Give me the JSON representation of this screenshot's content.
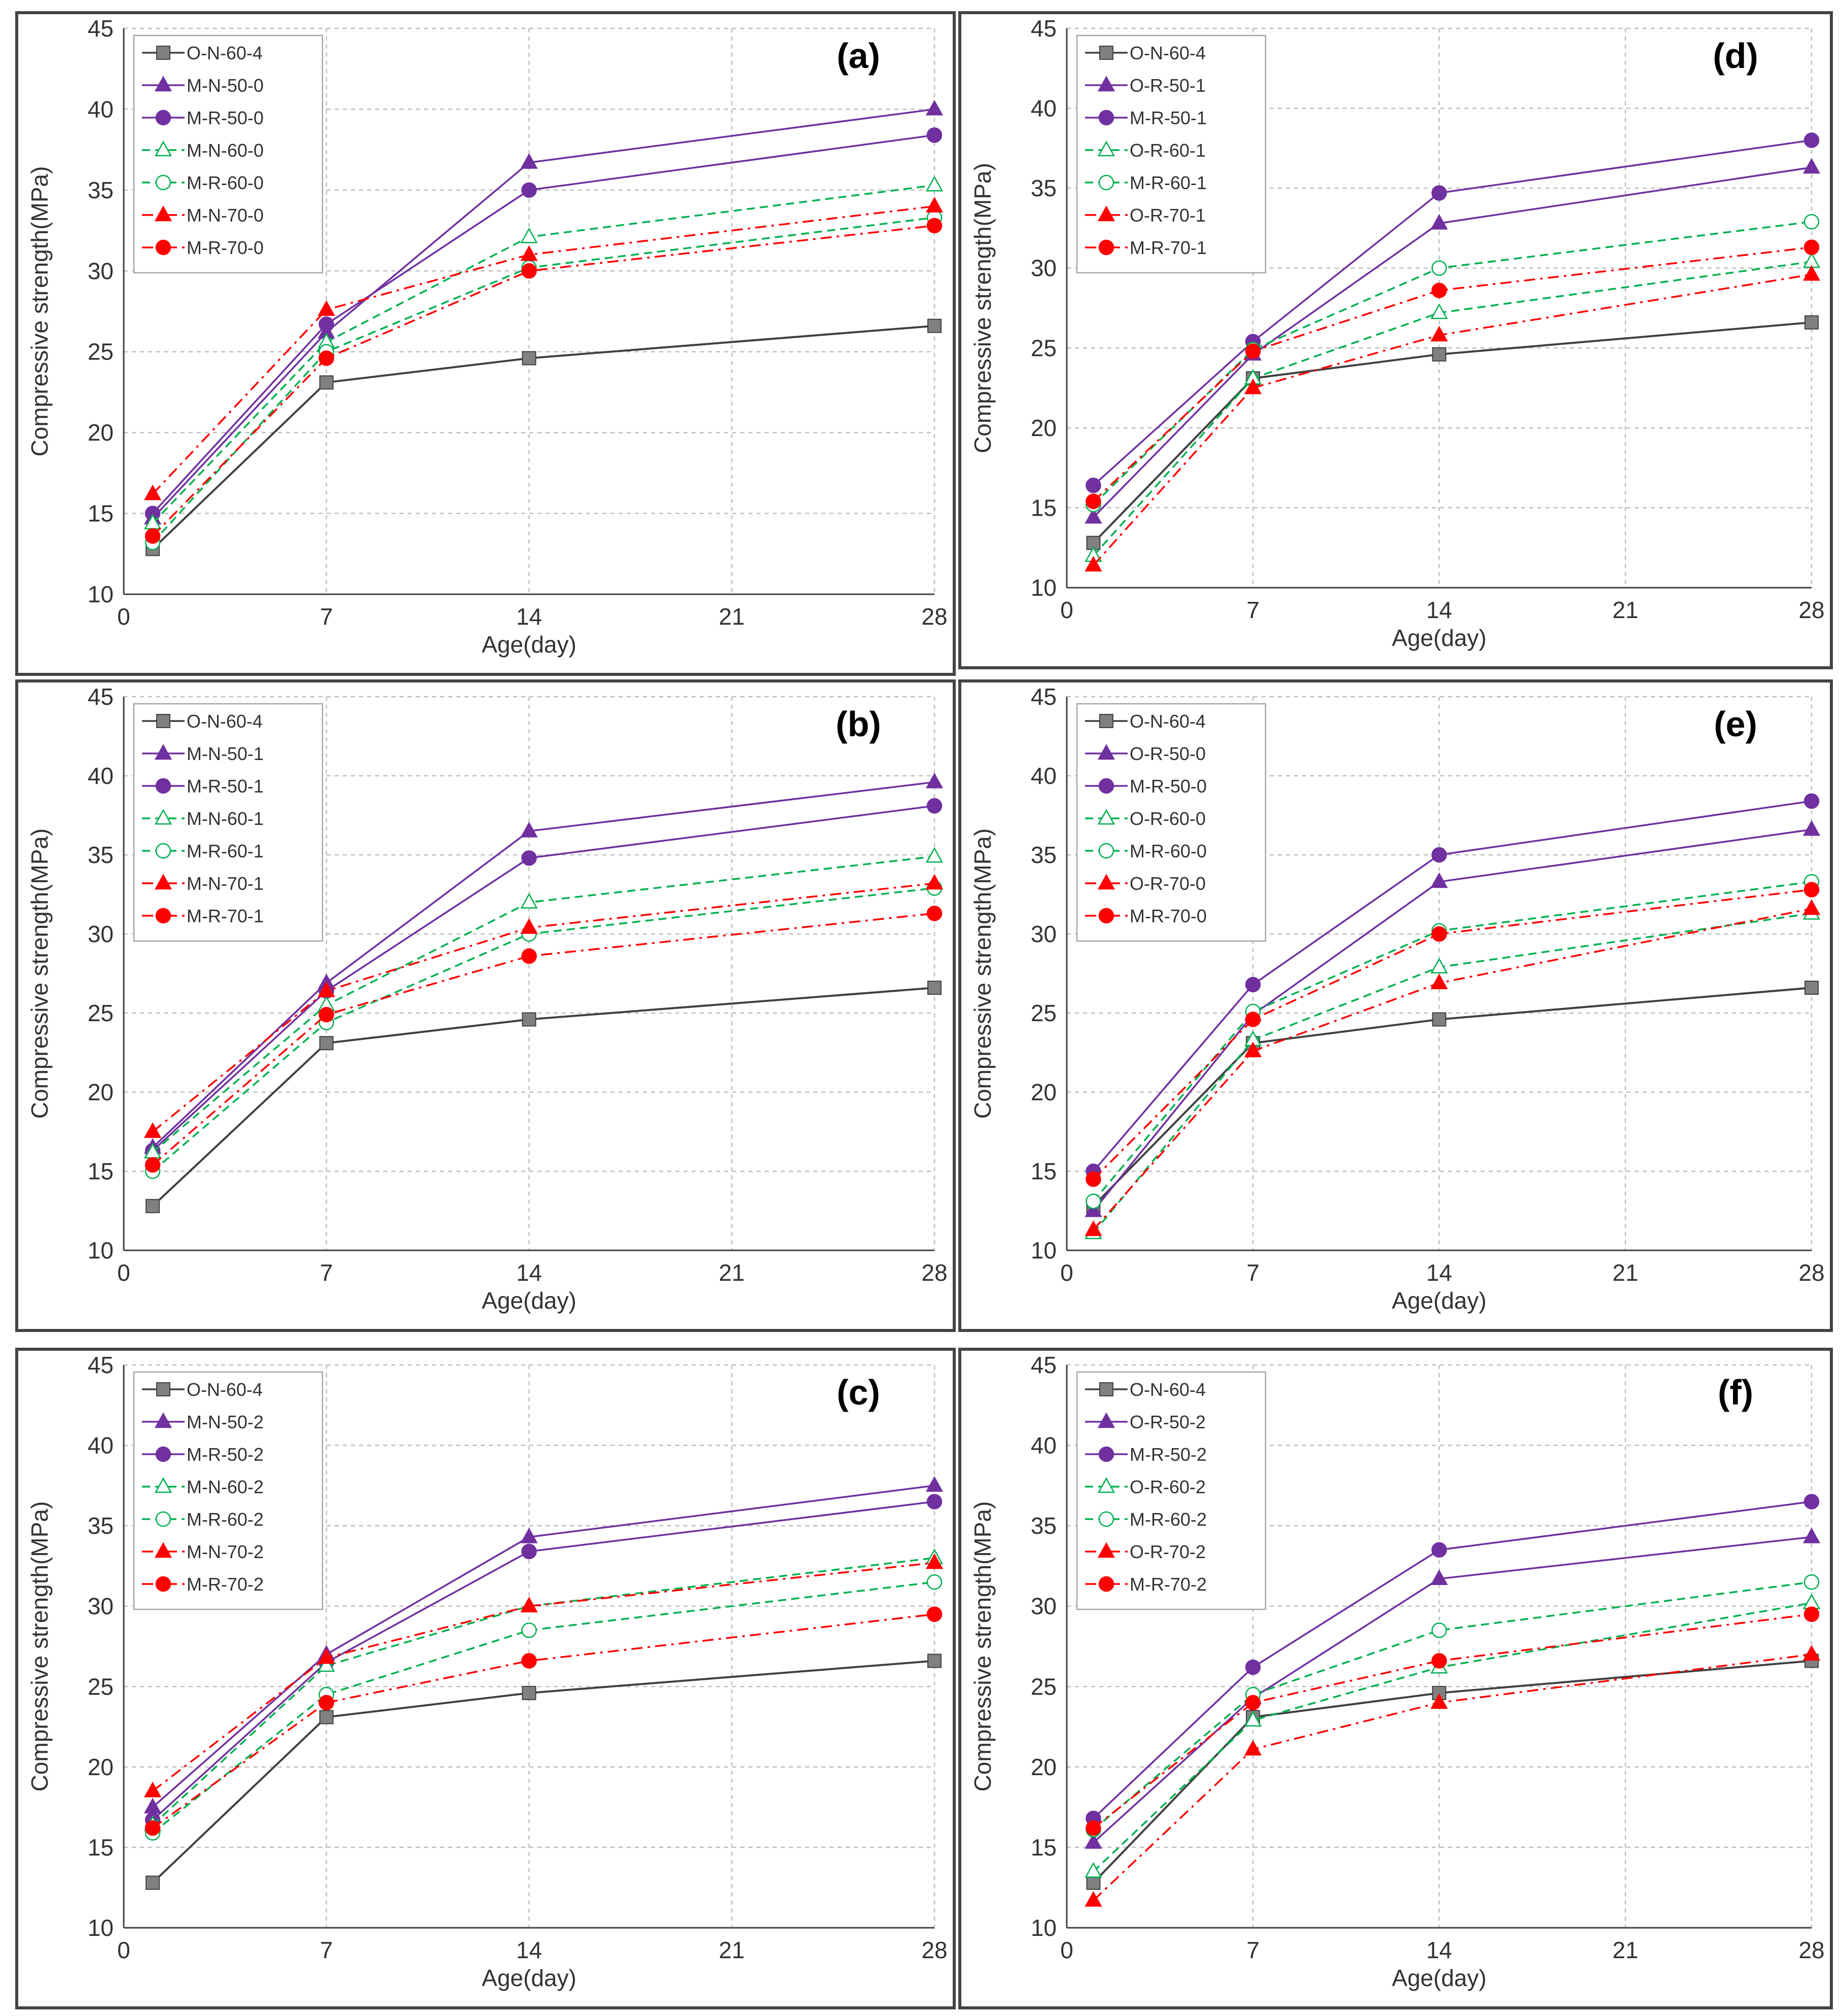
{
  "colors": {
    "black_series": "#404040",
    "black_marker": "#808080",
    "purple": "#7030A0",
    "green": "#00B050",
    "red": "#FF0000",
    "grid": "#BFBFBF",
    "axis": "#404040"
  },
  "chart_data": [
    {
      "type": "line",
      "panel": "(a)",
      "xlabel": "Age(day)",
      "ylabel": "Compressive strength(MPa)",
      "xlim": [
        0,
        28
      ],
      "ylim": [
        10,
        45
      ],
      "xticks": [
        0,
        7,
        14,
        21,
        28
      ],
      "yticks": [
        10,
        15,
        20,
        25,
        30,
        35,
        40,
        45
      ],
      "grid": true,
      "legend": "top-left",
      "x": [
        1,
        7,
        14,
        28
      ],
      "series": [
        {
          "name": "O-N-60-4",
          "marker": "square",
          "color": "black",
          "line": "solid",
          "values": [
            12.8,
            23.1,
            24.6,
            26.6
          ]
        },
        {
          "name": "M-N-50-0",
          "marker": "triangle",
          "color": "purple",
          "line": "solid",
          "fill": true,
          "values": [
            14.7,
            26.2,
            36.7,
            40.0
          ]
        },
        {
          "name": "M-R-50-0",
          "marker": "circle",
          "color": "purple",
          "line": "solid",
          "fill": true,
          "values": [
            15.0,
            26.7,
            35.0,
            38.4
          ]
        },
        {
          "name": "M-N-60-0",
          "marker": "triangle",
          "color": "green",
          "line": "dash",
          "fill": false,
          "values": [
            14.4,
            25.6,
            32.1,
            35.3
          ]
        },
        {
          "name": "M-R-60-0",
          "marker": "circle",
          "color": "green",
          "line": "dash",
          "fill": false,
          "values": [
            13.2,
            25.0,
            30.2,
            33.3
          ]
        },
        {
          "name": "M-N-70-0",
          "marker": "triangle",
          "color": "red",
          "line": "dashdot",
          "fill": true,
          "values": [
            16.2,
            27.6,
            31.0,
            34.0
          ]
        },
        {
          "name": "M-R-70-0",
          "marker": "circle",
          "color": "red",
          "line": "dashdot",
          "fill": true,
          "values": [
            13.6,
            24.6,
            30.0,
            32.8
          ]
        }
      ]
    },
    {
      "type": "line",
      "panel": "(b)",
      "xlabel": "Age(day)",
      "ylabel": "Compressive strength(MPa)",
      "xlim": [
        0,
        28
      ],
      "ylim": [
        10,
        45
      ],
      "xticks": [
        0,
        7,
        14,
        21,
        28
      ],
      "yticks": [
        10,
        15,
        20,
        25,
        30,
        35,
        40,
        45
      ],
      "grid": true,
      "legend": "top-left",
      "x": [
        1,
        7,
        14,
        28
      ],
      "series": [
        {
          "name": "O-N-60-4",
          "marker": "square",
          "color": "black",
          "line": "solid",
          "values": [
            12.8,
            23.1,
            24.6,
            26.6
          ]
        },
        {
          "name": "M-N-50-1",
          "marker": "triangle",
          "color": "purple",
          "line": "solid",
          "fill": true,
          "values": [
            16.5,
            26.9,
            36.5,
            39.6
          ]
        },
        {
          "name": "M-R-50-1",
          "marker": "circle",
          "color": "purple",
          "line": "solid",
          "fill": true,
          "values": [
            16.3,
            26.4,
            34.8,
            38.1
          ]
        },
        {
          "name": "M-N-60-1",
          "marker": "triangle",
          "color": "green",
          "line": "dash",
          "fill": false,
          "values": [
            16.2,
            25.5,
            32.0,
            34.9
          ]
        },
        {
          "name": "M-R-60-1",
          "marker": "circle",
          "color": "green",
          "line": "dash",
          "fill": false,
          "values": [
            15.0,
            24.4,
            30.0,
            32.9
          ]
        },
        {
          "name": "M-N-70-1",
          "marker": "triangle",
          "color": "red",
          "line": "dashdot",
          "fill": true,
          "values": [
            17.5,
            26.4,
            30.4,
            33.2
          ]
        },
        {
          "name": "M-R-70-1",
          "marker": "circle",
          "color": "red",
          "line": "dashdot",
          "fill": true,
          "values": [
            15.4,
            24.9,
            28.6,
            31.3
          ]
        }
      ]
    },
    {
      "type": "line",
      "panel": "(c)",
      "xlabel": "Age(day)",
      "ylabel": "Compressive strength(MPa)",
      "xlim": [
        0,
        28
      ],
      "ylim": [
        10,
        45
      ],
      "xticks": [
        0,
        7,
        14,
        21,
        28
      ],
      "yticks": [
        10,
        15,
        20,
        25,
        30,
        35,
        40,
        45
      ],
      "grid": true,
      "legend": "top-left",
      "x": [
        1,
        7,
        14,
        28
      ],
      "series": [
        {
          "name": "O-N-60-4",
          "marker": "square",
          "color": "black",
          "line": "solid",
          "values": [
            12.8,
            23.1,
            24.6,
            26.6
          ]
        },
        {
          "name": "M-N-50-2",
          "marker": "triangle",
          "color": "purple",
          "line": "solid",
          "fill": true,
          "values": [
            17.5,
            27.0,
            34.3,
            37.5
          ]
        },
        {
          "name": "M-R-50-2",
          "marker": "circle",
          "color": "purple",
          "line": "solid",
          "fill": true,
          "values": [
            16.7,
            26.5,
            33.4,
            36.5
          ]
        },
        {
          "name": "M-N-60-2",
          "marker": "triangle",
          "color": "green",
          "line": "dash",
          "fill": false,
          "values": [
            16.4,
            26.3,
            30.0,
            33.0
          ]
        },
        {
          "name": "M-R-60-2",
          "marker": "circle",
          "color": "green",
          "line": "dash",
          "fill": false,
          "values": [
            15.9,
            24.5,
            28.5,
            31.5
          ]
        },
        {
          "name": "M-N-70-2",
          "marker": "triangle",
          "color": "red",
          "line": "dashdot",
          "fill": true,
          "values": [
            18.5,
            26.8,
            30.0,
            32.7
          ]
        },
        {
          "name": "M-R-70-2",
          "marker": "circle",
          "color": "red",
          "line": "dashdot",
          "fill": true,
          "values": [
            16.2,
            24.0,
            26.6,
            29.5
          ]
        }
      ]
    },
    {
      "type": "line",
      "panel": "(d)",
      "xlabel": "Age(day)",
      "ylabel": "Compressive strength(MPa)",
      "xlim": [
        0,
        28
      ],
      "ylim": [
        10,
        45
      ],
      "xticks": [
        0,
        7,
        14,
        21,
        28
      ],
      "yticks": [
        10,
        15,
        20,
        25,
        30,
        35,
        40,
        45
      ],
      "grid": true,
      "legend": "top-left",
      "x": [
        1,
        7,
        14,
        28
      ],
      "series": [
        {
          "name": "O-N-60-4",
          "marker": "square",
          "color": "black",
          "line": "solid",
          "values": [
            12.8,
            23.1,
            24.6,
            26.6
          ]
        },
        {
          "name": "O-R-50-1",
          "marker": "triangle",
          "color": "purple",
          "line": "solid",
          "fill": true,
          "values": [
            14.4,
            24.6,
            32.8,
            36.3
          ]
        },
        {
          "name": "M-R-50-1",
          "marker": "circle",
          "color": "purple",
          "line": "solid",
          "fill": true,
          "values": [
            16.4,
            25.4,
            34.7,
            38.0
          ]
        },
        {
          "name": "O-R-60-1",
          "marker": "triangle",
          "color": "green",
          "line": "dash",
          "fill": false,
          "values": [
            12.0,
            23.1,
            27.2,
            30.4
          ]
        },
        {
          "name": "M-R-60-1",
          "marker": "circle",
          "color": "green",
          "line": "dash",
          "fill": false,
          "values": [
            15.2,
            24.9,
            30.0,
            32.9
          ]
        },
        {
          "name": "O-R-70-1",
          "marker": "triangle",
          "color": "red",
          "line": "dashdot",
          "fill": true,
          "values": [
            11.4,
            22.5,
            25.8,
            29.6
          ]
        },
        {
          "name": "M-R-70-1",
          "marker": "circle",
          "color": "red",
          "line": "dashdot",
          "fill": true,
          "values": [
            15.4,
            24.8,
            28.6,
            31.3
          ]
        }
      ]
    },
    {
      "type": "line",
      "panel": "(e)",
      "xlabel": "Age(day)",
      "ylabel": "Compressive strength(MPa)",
      "xlim": [
        0,
        28
      ],
      "ylim": [
        10,
        45
      ],
      "xticks": [
        0,
        7,
        14,
        21,
        28
      ],
      "yticks": [
        10,
        15,
        20,
        25,
        30,
        35,
        40,
        45
      ],
      "grid": true,
      "legend": "top-left",
      "x": [
        1,
        7,
        14,
        28
      ],
      "series": [
        {
          "name": "O-N-60-4",
          "marker": "square",
          "color": "black",
          "line": "solid",
          "values": [
            12.8,
            23.1,
            24.6,
            26.6
          ]
        },
        {
          "name": "O-R-50-0",
          "marker": "triangle",
          "color": "purple",
          "line": "solid",
          "fill": true,
          "values": [
            12.5,
            24.9,
            33.3,
            36.6
          ]
        },
        {
          "name": "M-R-50-0",
          "marker": "circle",
          "color": "purple",
          "line": "solid",
          "fill": true,
          "values": [
            15.0,
            26.8,
            35.0,
            38.4
          ]
        },
        {
          "name": "O-R-60-0",
          "marker": "triangle",
          "color": "green",
          "line": "dash",
          "fill": false,
          "values": [
            11.1,
            23.3,
            27.9,
            31.3
          ]
        },
        {
          "name": "M-R-60-0",
          "marker": "circle",
          "color": "green",
          "line": "dash",
          "fill": false,
          "values": [
            13.1,
            25.1,
            30.2,
            33.3
          ]
        },
        {
          "name": "O-R-70-0",
          "marker": "triangle",
          "color": "red",
          "line": "dashdot",
          "fill": true,
          "values": [
            11.3,
            22.6,
            26.9,
            31.6
          ]
        },
        {
          "name": "M-R-70-0",
          "marker": "circle",
          "color": "red",
          "line": "dashdot",
          "fill": true,
          "values": [
            14.5,
            24.6,
            30.0,
            32.8
          ]
        }
      ]
    },
    {
      "type": "line",
      "panel": "(f)",
      "xlabel": "Age(day)",
      "ylabel": "Compressive strength(MPa)",
      "xlim": [
        0,
        28
      ],
      "ylim": [
        10,
        45
      ],
      "xticks": [
        0,
        7,
        14,
        21,
        28
      ],
      "yticks": [
        10,
        15,
        20,
        25,
        30,
        35,
        40,
        45
      ],
      "grid": true,
      "legend": "top-left",
      "x": [
        1,
        7,
        14,
        28
      ],
      "series": [
        {
          "name": "O-N-60-4",
          "marker": "square",
          "color": "black",
          "line": "solid",
          "values": [
            12.8,
            23.1,
            24.6,
            26.6
          ]
        },
        {
          "name": "O-R-50-2",
          "marker": "triangle",
          "color": "purple",
          "line": "solid",
          "fill": true,
          "values": [
            15.3,
            24.3,
            31.7,
            34.3
          ]
        },
        {
          "name": "M-R-50-2",
          "marker": "circle",
          "color": "purple",
          "line": "solid",
          "fill": true,
          "values": [
            16.8,
            26.2,
            33.5,
            36.5
          ]
        },
        {
          "name": "O-R-60-2",
          "marker": "triangle",
          "color": "green",
          "line": "dash",
          "fill": false,
          "values": [
            13.5,
            22.9,
            26.2,
            30.2
          ]
        },
        {
          "name": "M-R-60-2",
          "marker": "circle",
          "color": "green",
          "line": "dash",
          "fill": false,
          "values": [
            16.1,
            24.5,
            28.5,
            31.5
          ]
        },
        {
          "name": "O-R-70-2",
          "marker": "triangle",
          "color": "red",
          "line": "dashdot",
          "fill": true,
          "values": [
            11.7,
            21.1,
            24.0,
            27.0
          ]
        },
        {
          "name": "M-R-70-2",
          "marker": "circle",
          "color": "red",
          "line": "dashdot",
          "fill": true,
          "values": [
            16.2,
            24.0,
            26.6,
            29.5
          ]
        }
      ]
    }
  ]
}
